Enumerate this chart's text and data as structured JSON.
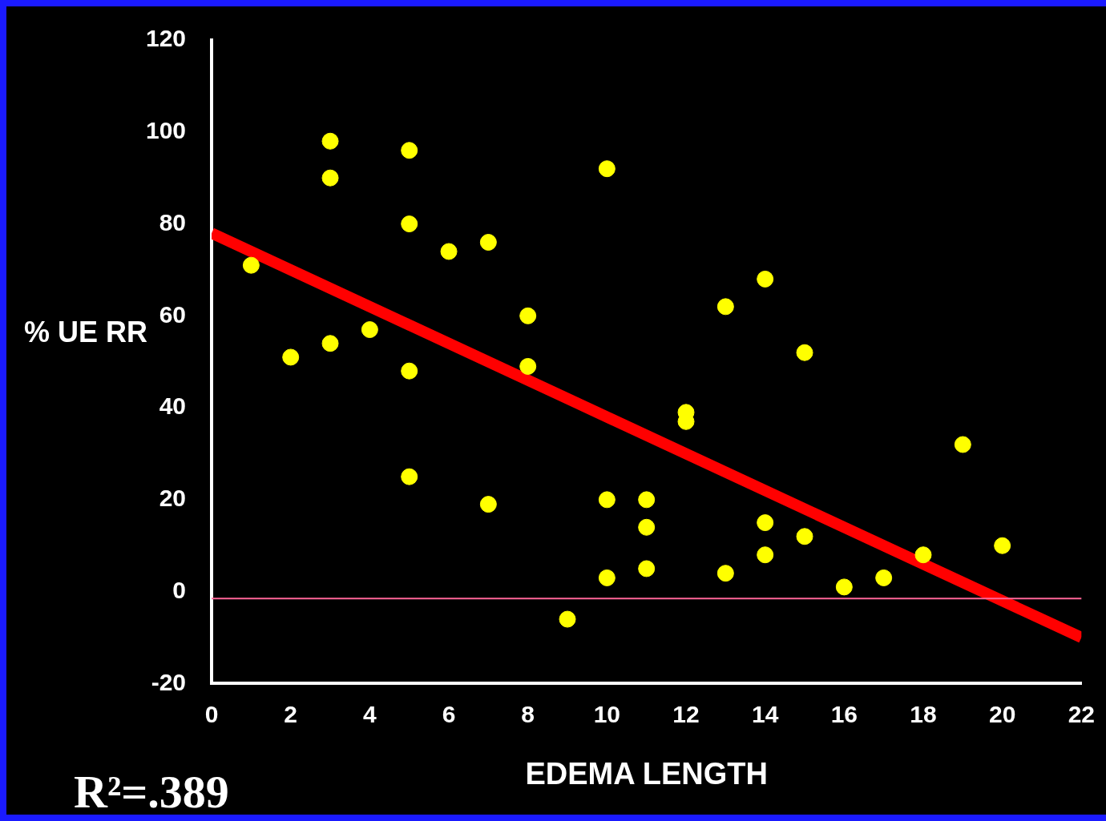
{
  "chart_data": {
    "type": "scatter",
    "xlabel": "EDEMA LENGTH",
    "ylabel": "% UE RR",
    "marker": "circle",
    "series": [
      {
        "color": "#ffff00",
        "x": [
          1,
          2,
          3,
          3,
          3,
          4,
          5,
          5,
          5,
          5,
          6,
          7,
          7,
          8,
          8,
          9,
          10,
          10,
          10,
          11,
          11,
          11,
          12,
          12,
          13,
          13,
          14,
          14,
          14,
          15,
          15,
          16,
          17,
          18,
          19,
          20
        ],
        "values": [
          71,
          51,
          98,
          90,
          54,
          57,
          96,
          80,
          48,
          25,
          74,
          76,
          19,
          60,
          49,
          -6,
          92,
          20,
          3,
          20,
          14,
          5,
          39,
          37,
          62,
          4,
          68,
          15,
          8,
          52,
          12,
          1,
          3,
          8,
          32,
          10
        ]
      },
      {
        "type": "line",
        "marker": "none",
        "color": "#ff0000",
        "x": [
          0,
          22
        ],
        "values": [
          78,
          -10
        ]
      }
    ],
    "xlim": [
      0,
      22
    ],
    "ylim": [
      -20,
      120
    ],
    "xticks": [
      0,
      2,
      4,
      6,
      8,
      10,
      12,
      14,
      16,
      18,
      20,
      22
    ],
    "yticks": [
      -20,
      0,
      20,
      40,
      60,
      80,
      100,
      120
    ],
    "ref_lines": [
      {
        "axis": "y",
        "value": -1.5,
        "color": "#ff6699"
      }
    ],
    "annotations": [
      "R²=.389"
    ]
  }
}
